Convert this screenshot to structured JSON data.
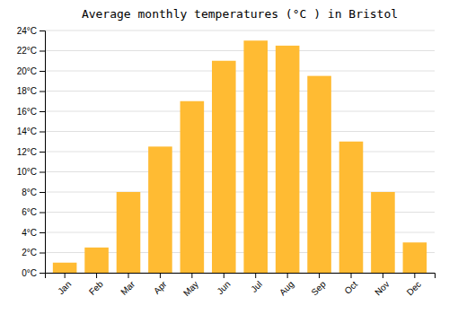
{
  "chart_data": {
    "type": "bar",
    "title": "Average monthly temperatures (°C ) in Bristol",
    "categories": [
      "Jan",
      "Feb",
      "Mar",
      "Apr",
      "May",
      "Jun",
      "Jul",
      "Aug",
      "Sep",
      "Oct",
      "Nov",
      "Dec"
    ],
    "values": [
      1,
      2.5,
      8,
      12.5,
      17,
      21,
      23,
      22.5,
      19.5,
      13,
      8,
      3
    ],
    "color": "#FFBB33",
    "ylim": [
      0,
      24
    ],
    "yticks": [
      {
        "value": 0,
        "label": "0°C"
      },
      {
        "value": 2,
        "label": "2°C"
      },
      {
        "value": 4,
        "label": "4°C"
      },
      {
        "value": 6,
        "label": "6°C"
      },
      {
        "value": 8,
        "label": "8°C"
      },
      {
        "value": 10,
        "label": "10°C"
      },
      {
        "value": 12,
        "label": "12°C"
      },
      {
        "value": 14,
        "label": "14°C"
      },
      {
        "value": 16,
        "label": "16°C"
      },
      {
        "value": 18,
        "label": "18°C"
      },
      {
        "value": 20,
        "label": "20°C"
      },
      {
        "value": 22,
        "label": "22°C"
      },
      {
        "value": 24,
        "label": "24°C"
      }
    ],
    "grid": true
  }
}
